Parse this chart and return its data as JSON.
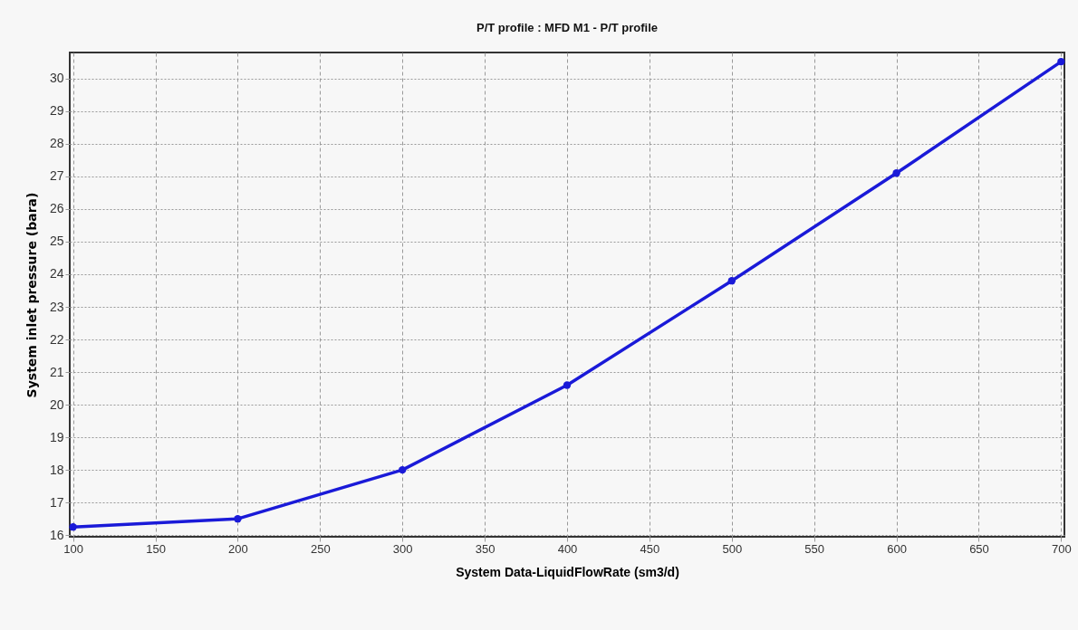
{
  "chart_data": {
    "type": "line",
    "title": "P/T profile : MFD M1 - P/T profile",
    "xlabel": "System Data-LiquidFlowRate (sm3/d)",
    "ylabel": "System inlet pressure (bara)",
    "x": [
      100,
      200,
      300,
      400,
      500,
      600,
      700
    ],
    "series": [
      {
        "color": "#1a1ad8",
        "values": [
          16.25,
          16.5,
          18.0,
          20.6,
          23.8,
          27.1,
          30.52
        ]
      }
    ],
    "xlim": [
      98,
      702
    ],
    "xticks": [
      100,
      150,
      200,
      250,
      300,
      350,
      400,
      450,
      500,
      550,
      600,
      650,
      700
    ],
    "ylim": [
      15.95,
      30.8
    ],
    "yticks": [
      16,
      17,
      18,
      19,
      20,
      21,
      22,
      23,
      24,
      25,
      26,
      27,
      28,
      29,
      30
    ],
    "grid": true,
    "marker": "circle",
    "line_style": "solid"
  }
}
